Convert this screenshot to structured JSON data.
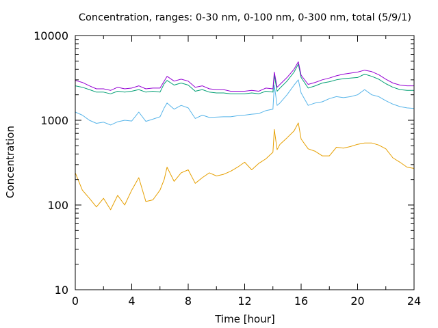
{
  "chart_data": {
    "type": "line",
    "title": "Concentration, ranges: 0-30 nm, 0-100 nm, 0-300 nm, total (5/9/1)",
    "xlabel": "Time [hour]",
    "ylabel": "Concentration",
    "xlim": [
      0,
      24
    ],
    "ylim": [
      10,
      10000
    ],
    "yscale": "log",
    "xticks": [
      "0",
      "4",
      "8",
      "12",
      "16",
      "20",
      "24"
    ],
    "yticks": [
      "10",
      "100",
      "1000",
      "10000"
    ],
    "grid": false,
    "legend": "none",
    "x": [
      0,
      0.5,
      1,
      1.5,
      2,
      2.5,
      3,
      3.5,
      4,
      4.5,
      5,
      5.5,
      6,
      6.3,
      6.5,
      7,
      7.5,
      8,
      8.5,
      9,
      9.5,
      10,
      10.5,
      11,
      11.5,
      12,
      12.5,
      13,
      13.5,
      14,
      14.1,
      14.3,
      14.5,
      15,
      15.5,
      15.8,
      16,
      16.5,
      17,
      17.5,
      18,
      18.5,
      19,
      19.5,
      20,
      20.5,
      21,
      21.5,
      22,
      22.5,
      23,
      23.5,
      24
    ],
    "series": [
      {
        "color": "#e69f00",
        "values": [
          240,
          150,
          120,
          95,
          120,
          88,
          130,
          100,
          150,
          210,
          110,
          115,
          150,
          200,
          280,
          190,
          240,
          260,
          180,
          210,
          240,
          220,
          230,
          250,
          280,
          320,
          260,
          310,
          350,
          420,
          780,
          450,
          520,
          620,
          750,
          930,
          600,
          460,
          430,
          380,
          380,
          480,
          470,
          490,
          520,
          540,
          540,
          510,
          460,
          360,
          320,
          280,
          270
        ]
      },
      {
        "color": "#56b4e9",
        "values": [
          1250,
          1150,
          1000,
          920,
          950,
          880,
          960,
          1000,
          980,
          1250,
          970,
          1030,
          1100,
          1400,
          1600,
          1350,
          1500,
          1400,
          1050,
          1150,
          1080,
          1090,
          1100,
          1100,
          1130,
          1150,
          1180,
          1200,
          1300,
          1350,
          2600,
          1500,
          1600,
          2000,
          2600,
          3000,
          2100,
          1500,
          1600,
          1650,
          1800,
          1900,
          1850,
          1900,
          2000,
          2300,
          2000,
          1900,
          1700,
          1550,
          1450,
          1400,
          1380
        ]
      },
      {
        "color": "#009e73",
        "values": [
          2550,
          2450,
          2300,
          2150,
          2150,
          2050,
          2200,
          2150,
          2200,
          2300,
          2150,
          2200,
          2150,
          2700,
          2950,
          2600,
          2750,
          2600,
          2200,
          2300,
          2150,
          2100,
          2100,
          2050,
          2050,
          2050,
          2100,
          2050,
          2200,
          2150,
          3400,
          2200,
          2400,
          2900,
          3700,
          4600,
          3200,
          2400,
          2550,
          2750,
          2850,
          3000,
          3100,
          3150,
          3200,
          3500,
          3300,
          3050,
          2700,
          2450,
          2300,
          2250,
          2250
        ]
      },
      {
        "color": "#9400d3",
        "values": [
          2950,
          2800,
          2550,
          2350,
          2350,
          2250,
          2450,
          2350,
          2400,
          2550,
          2350,
          2400,
          2400,
          2900,
          3300,
          2900,
          3050,
          2900,
          2450,
          2550,
          2350,
          2300,
          2300,
          2200,
          2200,
          2200,
          2250,
          2200,
          2400,
          2350,
          3700,
          2450,
          2650,
          3200,
          4000,
          4900,
          3400,
          2650,
          2800,
          3000,
          3150,
          3350,
          3500,
          3600,
          3700,
          3900,
          3750,
          3450,
          3050,
          2750,
          2600,
          2550,
          2550
        ]
      }
    ]
  }
}
